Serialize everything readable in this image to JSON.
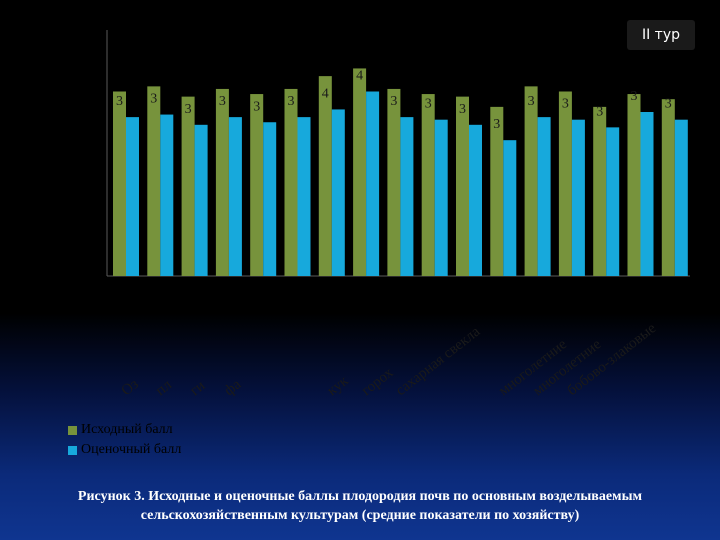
{
  "badge": "II тур",
  "chart_data": {
    "type": "bar",
    "categories": [
      "Оз",
      "пл",
      "ги",
      "фа",
      "",
      "",
      "кук",
      "горох",
      "сахарная свекла",
      "",
      "",
      "многолетние",
      "многолетние",
      "бобово-злаковые",
      "",
      "",
      ""
    ],
    "series": [
      {
        "name": "Исходный балл",
        "color": "#77933c",
        "values": [
          36,
          37,
          35,
          36.5,
          35.5,
          36.5,
          39,
          40.5,
          36.5,
          35.5,
          35,
          33,
          37,
          36,
          33,
          35.5,
          34.5
        ]
      },
      {
        "name": "Оценочный балл",
        "color": "#17a9dc",
        "values": [
          31,
          31.5,
          29.5,
          31,
          30,
          31,
          32.5,
          36,
          31,
          30.5,
          29.5,
          26.5,
          31,
          30.5,
          29,
          32,
          30.5
        ]
      }
    ],
    "data_labels": [
      "3",
      "3",
      "3",
      "3",
      "3",
      "3",
      "4",
      "4",
      "3",
      "3",
      "3",
      "3",
      "3",
      "3",
      "3",
      "3",
      "3"
    ],
    "ylim": [
      0,
      48
    ],
    "grid": false,
    "legend": "bottom-left"
  },
  "legend": {
    "items": [
      {
        "label": "Исходный балл",
        "color": "#77933c"
      },
      {
        "label": "Оценочный балл",
        "color": "#17a9dc"
      }
    ]
  },
  "caption": "Рисунок 3. Исходные и оценочные баллы плодородия почв по основным возделываемым сельскохозяйственным культурам (средние показатели по хозяйству)"
}
